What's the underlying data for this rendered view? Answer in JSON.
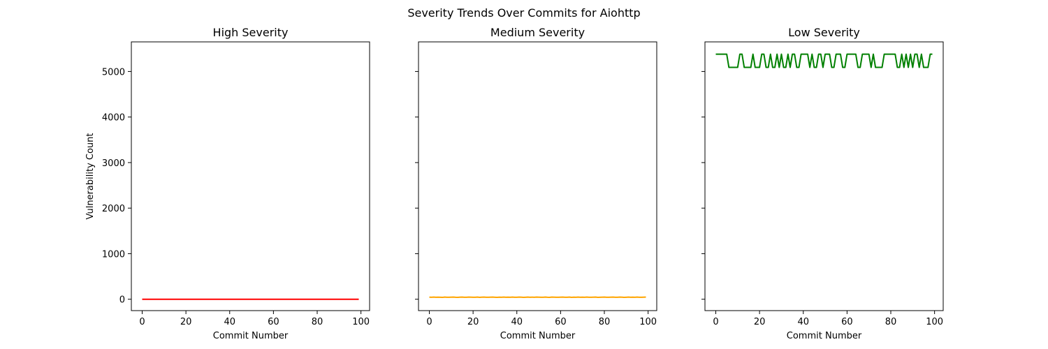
{
  "chart_data": {
    "suptitle": "Severity Trends Over Commits for Aiohttp",
    "type": "line",
    "shared_ylabel": "Vulnerability Count",
    "ylim": [
      -250,
      5650
    ],
    "yticks": [
      0,
      1000,
      2000,
      3000,
      4000,
      5000
    ],
    "xlim": [
      -4.95,
      103.95
    ],
    "xticks": [
      0,
      20,
      40,
      60,
      80,
      100
    ],
    "panels": [
      {
        "title": "High Severity",
        "xlabel": "Commit Number",
        "ylabel": "Vulnerability Count",
        "show_ytick_labels": true,
        "color": "#ff0000",
        "series": [
          {
            "x_start": 0,
            "x_end": 99,
            "values": [
              0
            ]
          }
        ]
      },
      {
        "title": "Medium Severity",
        "xlabel": "Commit Number",
        "ylabel": "",
        "show_ytick_labels": false,
        "color": "#ffa500",
        "series": [
          {
            "x_start": 0,
            "x_end": 99,
            "values": [
              45,
              44,
              46,
              43,
              45,
              44,
              42,
              46,
              44,
              43,
              45,
              47,
              44,
              42,
              45,
              46,
              43,
              44,
              46,
              45,
              43,
              44,
              46,
              42,
              45,
              47,
              44,
              43,
              45,
              46,
              44,
              42,
              45,
              44,
              46,
              43,
              45,
              44,
              47,
              43,
              44,
              46,
              45,
              42,
              44,
              46,
              43,
              45,
              44,
              46,
              45,
              43,
              44,
              47,
              44,
              42,
              46,
              45,
              43,
              44,
              45,
              46,
              43,
              44,
              46,
              42,
              45,
              44,
              47,
              43,
              45,
              44,
              46,
              43,
              44,
              45,
              46,
              42,
              44,
              45,
              46,
              43,
              44,
              45,
              47,
              43,
              44,
              46,
              45,
              42,
              44,
              46,
              43,
              45,
              44,
              46,
              44,
              43,
              45,
              46
            ]
          }
        ]
      },
      {
        "title": "Low Severity",
        "xlabel": "Commit Number",
        "ylabel": "",
        "show_ytick_labels": false,
        "color": "#008000",
        "series": [
          {
            "x_start": 0,
            "x_end": 99,
            "values": [
              5380,
              5380,
              5380,
              5380,
              5380,
              5380,
              5090,
              5090,
              5090,
              5090,
              5090,
              5380,
              5380,
              5090,
              5090,
              5090,
              5090,
              5380,
              5090,
              5090,
              5090,
              5380,
              5380,
              5090,
              5090,
              5380,
              5090,
              5090,
              5380,
              5090,
              5380,
              5090,
              5090,
              5380,
              5090,
              5380,
              5380,
              5090,
              5090,
              5380,
              5380,
              5380,
              5380,
              5090,
              5380,
              5090,
              5090,
              5380,
              5380,
              5090,
              5380,
              5380,
              5380,
              5090,
              5090,
              5380,
              5380,
              5380,
              5090,
              5090,
              5380,
              5380,
              5380,
              5380,
              5380,
              5090,
              5090,
              5380,
              5380,
              5380,
              5380,
              5090,
              5380,
              5090,
              5090,
              5090,
              5090,
              5380,
              5380,
              5380,
              5380,
              5380,
              5380,
              5090,
              5090,
              5380,
              5090,
              5380,
              5090,
              5380,
              5090,
              5380,
              5380,
              5090,
              5380,
              5090,
              5090,
              5090,
              5380,
              5380
            ]
          }
        ]
      }
    ]
  }
}
